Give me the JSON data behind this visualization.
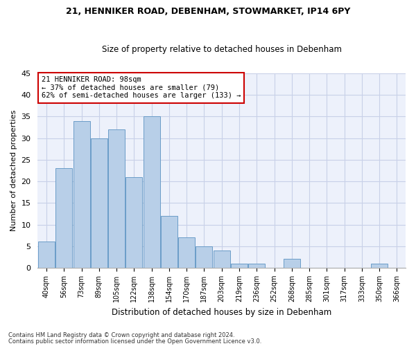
{
  "title1": "21, HENNIKER ROAD, DEBENHAM, STOWMARKET, IP14 6PY",
  "title2": "Size of property relative to detached houses in Debenham",
  "xlabel": "Distribution of detached houses by size in Debenham",
  "ylabel": "Number of detached properties",
  "categories": [
    "40sqm",
    "56sqm",
    "73sqm",
    "89sqm",
    "105sqm",
    "122sqm",
    "138sqm",
    "154sqm",
    "170sqm",
    "187sqm",
    "203sqm",
    "219sqm",
    "236sqm",
    "252sqm",
    "268sqm",
    "285sqm",
    "301sqm",
    "317sqm",
    "333sqm",
    "350sqm",
    "366sqm"
  ],
  "values": [
    6,
    23,
    34,
    30,
    32,
    21,
    35,
    12,
    7,
    5,
    4,
    1,
    1,
    0,
    2,
    0,
    0,
    0,
    0,
    1,
    0
  ],
  "bar_color": "#b8cfe8",
  "bar_edge_color": "#6a9cc8",
  "ylim": [
    0,
    45
  ],
  "yticks": [
    0,
    5,
    10,
    15,
    20,
    25,
    30,
    35,
    40,
    45
  ],
  "annotation_line1": "21 HENNIKER ROAD: 98sqm",
  "annotation_line2": "← 37% of detached houses are smaller (79)",
  "annotation_line3": "62% of semi-detached houses are larger (133) →",
  "annotation_box_color": "#ffffff",
  "annotation_box_edgecolor": "#cc0000",
  "footer1": "Contains HM Land Registry data © Crown copyright and database right 2024.",
  "footer2": "Contains public sector information licensed under the Open Government Licence v3.0.",
  "bg_color": "#edf1fb",
  "grid_color": "#c8d0e8",
  "bar_width": 0.95
}
